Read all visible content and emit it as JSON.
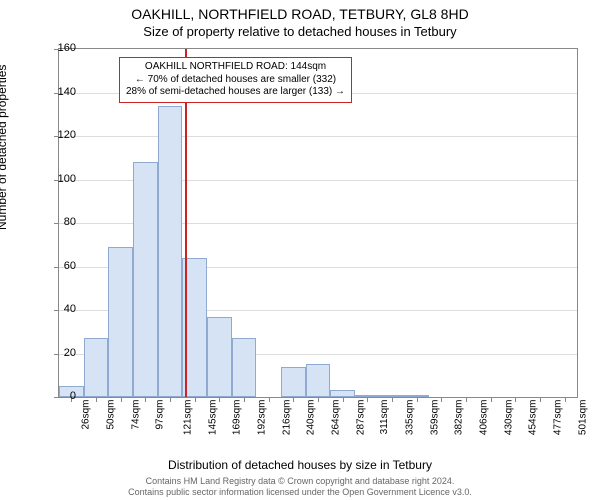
{
  "title_line1": "OAKHILL, NORTHFIELD ROAD, TETBURY, GL8 8HD",
  "title_line2": "Size of property relative to detached houses in Tetbury",
  "ylabel": "Number of detached properties",
  "xlabel": "Distribution of detached houses by size in Tetbury",
  "credit_line1": "Contains HM Land Registry data © Crown copyright and database right 2024.",
  "credit_line2": "Contains public sector information licensed under the Open Government Licence v3.0.",
  "chart": {
    "type": "histogram",
    "background_color": "#ffffff",
    "border_color": "#888888",
    "grid_color": "#dddddd",
    "bar_fill": "#d6e3f5",
    "bar_border": "#8fa9d0",
    "reference_line_color": "#cc2222",
    "reference_line_width": 2,
    "annotation_border": "#cc2222",
    "annotation_bg": "#ffffff",
    "ylim": [
      0,
      160
    ],
    "yticks": [
      0,
      20,
      40,
      60,
      80,
      100,
      120,
      140,
      160
    ],
    "x_categories": [
      "26sqm",
      "50sqm",
      "74sqm",
      "97sqm",
      "121sqm",
      "145sqm",
      "169sqm",
      "192sqm",
      "216sqm",
      "240sqm",
      "264sqm",
      "287sqm",
      "311sqm",
      "335sqm",
      "359sqm",
      "382sqm",
      "406sqm",
      "430sqm",
      "454sqm",
      "477sqm",
      "501sqm"
    ],
    "bar_values": [
      5,
      27,
      69,
      108,
      134,
      64,
      37,
      27,
      0,
      14,
      15,
      3,
      1,
      1,
      1,
      0,
      0,
      0,
      0,
      0,
      0
    ],
    "reference_value_sqm": 144,
    "x_range_sqm": [
      26,
      513
    ],
    "annotation_lines": [
      "OAKHILL NORTHFIELD ROAD: 144sqm",
      "← 70% of detached houses are smaller (332)",
      "28% of semi-detached houses are larger (133) →"
    ],
    "title_fontsize": 14,
    "subtitle_fontsize": 13,
    "label_fontsize": 12,
    "tick_fontsize": 11,
    "xtick_fontsize": 10,
    "annotation_fontsize": 10,
    "credit_fontsize": 9
  }
}
